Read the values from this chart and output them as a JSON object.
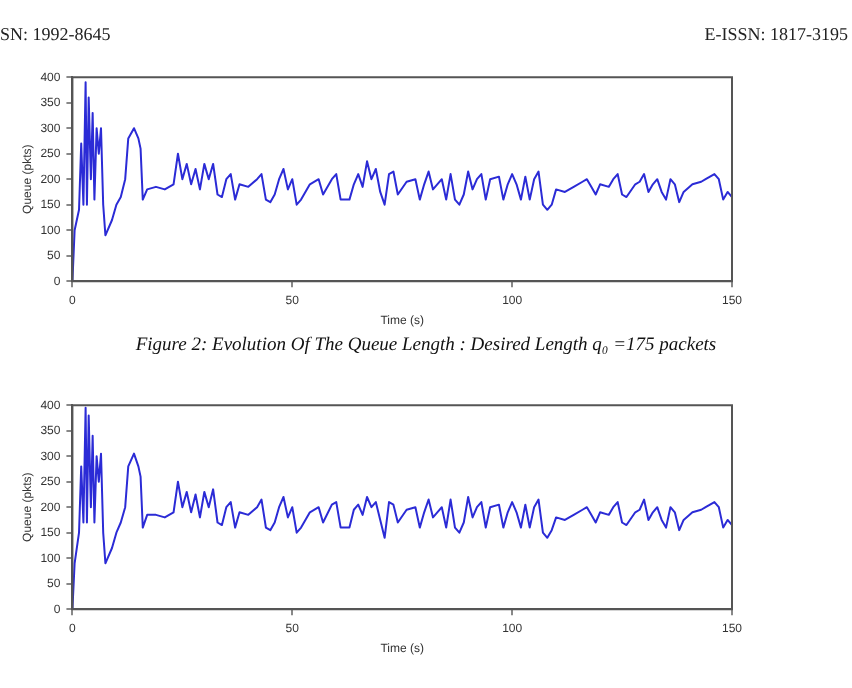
{
  "chart_data": [
    {
      "type": "line",
      "xlabel": "Time (s)",
      "ylabel": "Queue (pkts)",
      "annotations": [
        "SN: 1992-8645",
        "E-ISSN: 1817-3195",
        "Figure 2: Evolution Of The Queue Length : Desired Length q₀ =175 packets"
      ],
      "xlim": [
        0,
        150
      ],
      "xticks": [
        0,
        50,
        100,
        150
      ],
      "ylim": [
        0,
        400
      ],
      "yticks": [
        0,
        50,
        100,
        150,
        200,
        250,
        300,
        350,
        400
      ],
      "grid": false,
      "legend": false,
      "marker": "none",
      "line_style": "solid",
      "series": [
        {
          "color": "#2b2bd6",
          "x": [
            0,
            0.5,
            1.5,
            2,
            2.5,
            3,
            3.3,
            3.7,
            4.2,
            4.6,
            5,
            5.5,
            6,
            6.5,
            7,
            7.5,
            9,
            10,
            11,
            12,
            12.7,
            14,
            15,
            15.5,
            16,
            17,
            19,
            21,
            23,
            24,
            25,
            26,
            27,
            28,
            29,
            30,
            31,
            32,
            33,
            34,
            35,
            36,
            37,
            38,
            40,
            42,
            43,
            44,
            45,
            46,
            47,
            48,
            49,
            50,
            51,
            52,
            54,
            56,
            57,
            59,
            60,
            61,
            63,
            64,
            65,
            66,
            67,
            68,
            69,
            70,
            71,
            72,
            73,
            74,
            76,
            78,
            79,
            80,
            81,
            82,
            84,
            85,
            86,
            87,
            88,
            89,
            90,
            91,
            92,
            93,
            94,
            95,
            97,
            98,
            99,
            100,
            101,
            102,
            103,
            104,
            105,
            106,
            107,
            108,
            109,
            110,
            112,
            114,
            116,
            117,
            118,
            119,
            120,
            122,
            123,
            124,
            125,
            126,
            128,
            129,
            130,
            131,
            132,
            133,
            134,
            135,
            136,
            137,
            138,
            139,
            141,
            143,
            144,
            145,
            146,
            147,
            148,
            149,
            150
          ],
          "values": [
            0,
            100,
            140,
            270,
            150,
            390,
            150,
            360,
            200,
            330,
            160,
            300,
            250,
            300,
            150,
            90,
            120,
            150,
            165,
            200,
            280,
            300,
            280,
            260,
            160,
            180,
            185,
            180,
            190,
            250,
            200,
            230,
            190,
            220,
            180,
            230,
            200,
            230,
            170,
            165,
            200,
            210,
            160,
            190,
            185,
            200,
            210,
            160,
            155,
            170,
            200,
            220,
            180,
            200,
            150,
            160,
            190,
            200,
            170,
            200,
            210,
            160,
            160,
            190,
            210,
            185,
            235,
            200,
            220,
            175,
            150,
            210,
            215,
            170,
            195,
            200,
            160,
            190,
            215,
            180,
            200,
            160,
            210,
            160,
            150,
            170,
            215,
            180,
            200,
            210,
            160,
            200,
            205,
            160,
            190,
            210,
            190,
            160,
            205,
            160,
            200,
            215,
            150,
            140,
            150,
            180,
            175,
            185,
            195,
            200,
            185,
            170,
            190,
            185,
            200,
            210,
            170,
            165,
            190,
            195,
            210,
            175,
            190,
            200,
            175,
            160,
            200,
            190,
            155,
            175,
            190,
            195,
            200,
            205,
            210,
            200,
            160,
            175,
            165
          ]
        }
      ]
    },
    {
      "type": "line",
      "xlabel": "Time (s)",
      "ylabel": "Queue (pkts)",
      "xlim": [
        0,
        150
      ],
      "xticks": [
        0,
        50,
        100,
        150
      ],
      "ylim": [
        0,
        400
      ],
      "yticks": [
        0,
        50,
        100,
        150,
        200,
        250,
        300,
        350,
        400
      ],
      "grid": false,
      "legend": false,
      "marker": "none",
      "line_style": "solid",
      "series": [
        {
          "color": "#2b2bd6",
          "x": [
            0,
            0.5,
            1.5,
            2,
            2.5,
            3,
            3.3,
            3.7,
            4.2,
            4.6,
            5,
            5.5,
            6,
            6.5,
            7,
            7.5,
            9,
            10,
            11,
            12,
            12.7,
            14,
            15,
            15.5,
            16,
            17,
            19,
            21,
            23,
            24,
            25,
            26,
            27,
            28,
            29,
            30,
            31,
            32,
            33,
            34,
            35,
            36,
            37,
            38,
            40,
            42,
            43,
            44,
            45,
            46,
            47,
            48,
            49,
            50,
            51,
            52,
            54,
            56,
            57,
            59,
            60,
            61,
            63,
            64,
            65,
            66,
            67,
            68,
            69,
            70,
            71,
            72,
            73,
            74,
            76,
            78,
            79,
            80,
            81,
            82,
            84,
            85,
            86,
            87,
            88,
            89,
            90,
            91,
            92,
            93,
            94,
            95,
            97,
            98,
            99,
            100,
            101,
            102,
            103,
            104,
            105,
            106,
            107,
            108,
            109,
            110,
            112,
            114,
            116,
            117,
            118,
            119,
            120,
            122,
            123,
            124,
            125,
            126,
            128,
            129,
            130,
            131,
            132,
            133,
            134,
            135,
            136,
            137,
            138,
            139,
            141,
            143,
            144,
            145,
            146,
            147,
            148,
            149,
            150
          ],
          "values": [
            0,
            90,
            150,
            280,
            170,
            395,
            170,
            380,
            200,
            340,
            170,
            300,
            250,
            305,
            150,
            90,
            120,
            150,
            170,
            200,
            280,
            305,
            280,
            260,
            160,
            185,
            185,
            180,
            190,
            250,
            200,
            230,
            190,
            225,
            180,
            230,
            200,
            235,
            170,
            165,
            200,
            210,
            160,
            190,
            185,
            200,
            215,
            160,
            155,
            170,
            200,
            220,
            180,
            200,
            150,
            160,
            190,
            200,
            170,
            205,
            210,
            160,
            160,
            195,
            205,
            185,
            220,
            200,
            210,
            175,
            140,
            210,
            205,
            170,
            195,
            200,
            160,
            190,
            215,
            180,
            200,
            160,
            215,
            160,
            150,
            170,
            220,
            180,
            200,
            210,
            160,
            200,
            205,
            160,
            190,
            210,
            190,
            160,
            205,
            160,
            200,
            215,
            150,
            140,
            155,
            180,
            175,
            185,
            195,
            200,
            185,
            170,
            190,
            185,
            200,
            210,
            170,
            165,
            190,
            195,
            215,
            175,
            190,
            200,
            175,
            160,
            200,
            190,
            155,
            175,
            190,
            195,
            200,
            205,
            210,
            200,
            160,
            175,
            165
          ]
        }
      ]
    }
  ]
}
